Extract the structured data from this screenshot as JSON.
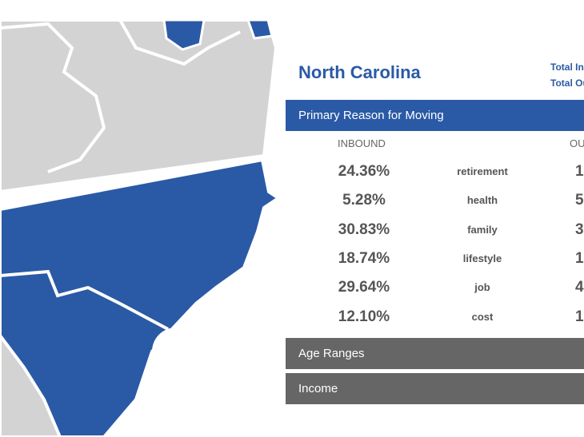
{
  "header": {
    "title": "North Carolina",
    "totals": [
      "Total In",
      "Total Ou"
    ]
  },
  "reasons": {
    "title": "Primary Reason for Moving",
    "columns": [
      "INBOUND",
      "OU"
    ],
    "rows": [
      {
        "inbound": "24.36%",
        "reason": "retirement",
        "outbound": "1."
      },
      {
        "inbound": "5.28%",
        "reason": "health",
        "outbound": "5"
      },
      {
        "inbound": "30.83%",
        "reason": "family",
        "outbound": "3"
      },
      {
        "inbound": "18.74%",
        "reason": "lifestyle",
        "outbound": "1"
      },
      {
        "inbound": "29.64%",
        "reason": "job",
        "outbound": "4"
      },
      {
        "inbound": "12.10%",
        "reason": "cost",
        "outbound": "1"
      }
    ]
  },
  "sections": [
    "Age Ranges",
    "Income"
  ]
}
